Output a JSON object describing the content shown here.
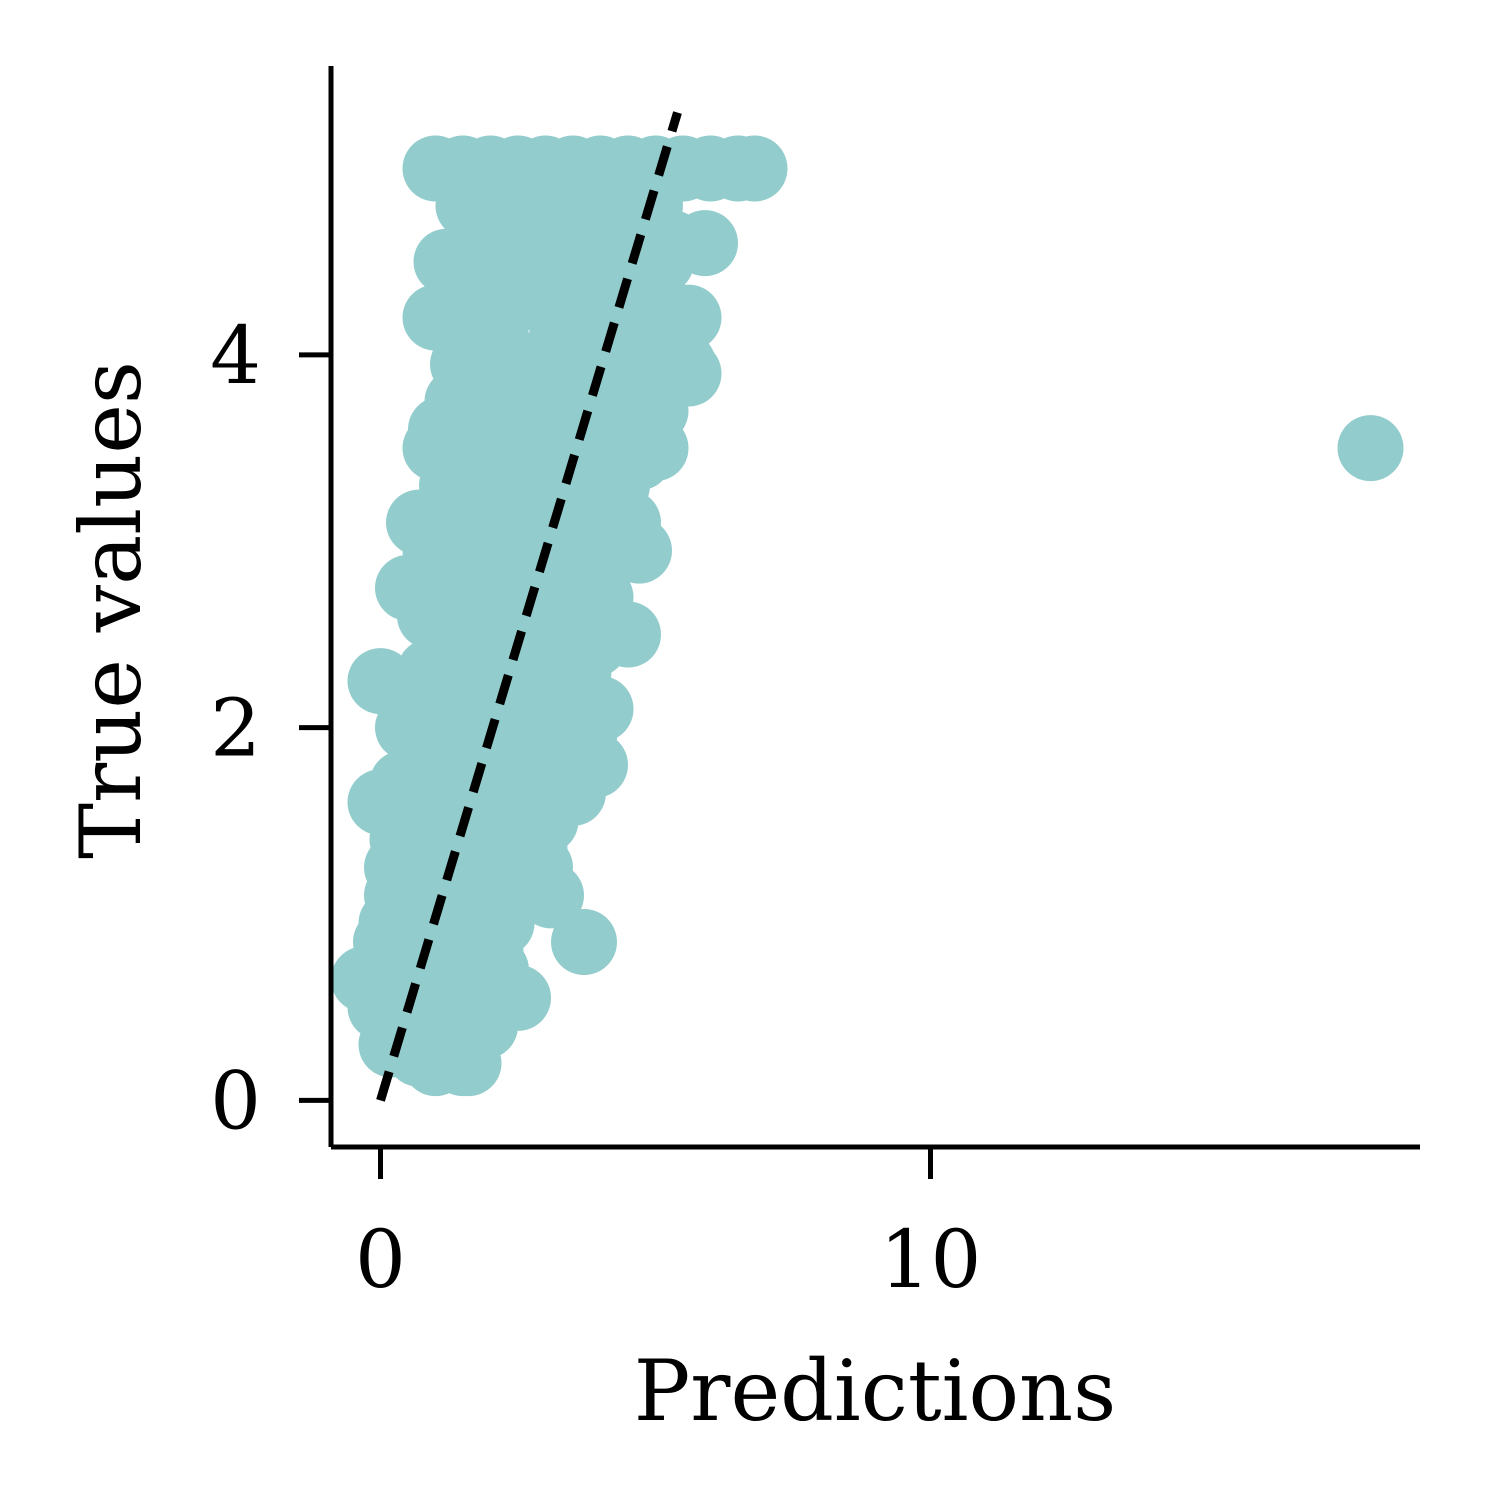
{
  "chart_data": {
    "type": "scatter",
    "title": "",
    "xlabel": "Predictions",
    "ylabel": "True values",
    "xlim": [
      -0.9,
      18.9
    ],
    "ylim": [
      -0.25,
      5.55
    ],
    "xticks": [
      0,
      10
    ],
    "yticks": [
      0,
      2,
      4
    ],
    "x_tick_labels": [
      "0",
      "10"
    ],
    "y_tick_labels": [
      "0",
      "2",
      "4"
    ],
    "grid": false,
    "legend": "none",
    "point_color": "#92cccc",
    "reference_line": {
      "style": "dashed",
      "color": "#000000",
      "x": [
        0,
        5.4
      ],
      "y": [
        0,
        5.3
      ]
    },
    "series": [
      {
        "values_xy": [
          [
            1.0,
            5.0
          ],
          [
            1.5,
            5.0
          ],
          [
            2.0,
            5.0
          ],
          [
            2.5,
            5.0
          ],
          [
            3.0,
            5.0
          ],
          [
            3.5,
            5.0
          ],
          [
            4.0,
            5.0
          ],
          [
            4.5,
            5.0
          ],
          [
            5.0,
            5.0
          ],
          [
            5.5,
            5.0
          ],
          [
            6.0,
            5.0
          ],
          [
            6.5,
            5.0
          ],
          [
            6.8,
            5.0
          ],
          [
            1.6,
            4.8
          ],
          [
            2.3,
            4.8
          ],
          [
            3.1,
            4.8
          ],
          [
            4.0,
            4.8
          ],
          [
            4.9,
            4.8
          ],
          [
            1.8,
            4.6
          ],
          [
            2.6,
            4.6
          ],
          [
            3.6,
            4.6
          ],
          [
            4.5,
            4.6
          ],
          [
            5.3,
            4.6
          ],
          [
            5.9,
            4.6
          ],
          [
            1.2,
            4.5
          ],
          [
            2.2,
            4.5
          ],
          [
            3.2,
            4.5
          ],
          [
            4.2,
            4.5
          ],
          [
            5.1,
            4.5
          ],
          [
            1.9,
            4.3
          ],
          [
            2.9,
            4.3
          ],
          [
            3.9,
            4.3
          ],
          [
            4.8,
            4.3
          ],
          [
            5.6,
            4.2
          ],
          [
            1.0,
            4.2
          ],
          [
            2.1,
            4.1
          ],
          [
            3.3,
            4.1
          ],
          [
            4.4,
            4.1
          ],
          [
            5.2,
            4.0
          ],
          [
            1.5,
            3.95
          ],
          [
            2.5,
            3.95
          ],
          [
            3.5,
            3.95
          ],
          [
            4.5,
            3.95
          ],
          [
            5.5,
            3.95
          ],
          [
            5.6,
            3.9
          ],
          [
            1.4,
            3.75
          ],
          [
            2.4,
            3.75
          ],
          [
            3.4,
            3.75
          ],
          [
            4.4,
            3.75
          ],
          [
            5.0,
            3.7
          ],
          [
            1.1,
            3.6
          ],
          [
            2.0,
            3.6
          ],
          [
            3.0,
            3.6
          ],
          [
            4.0,
            3.6
          ],
          [
            4.9,
            3.5
          ],
          [
            1.0,
            3.5
          ],
          [
            1.9,
            3.45
          ],
          [
            2.8,
            3.45
          ],
          [
            3.8,
            3.45
          ],
          [
            4.7,
            3.45
          ],
          [
            5.0,
            3.5
          ],
          [
            1.3,
            3.3
          ],
          [
            2.3,
            3.3
          ],
          [
            3.3,
            3.3
          ],
          [
            4.3,
            3.3
          ],
          [
            0.7,
            3.1
          ],
          [
            1.6,
            3.1
          ],
          [
            2.6,
            3.1
          ],
          [
            3.6,
            3.1
          ],
          [
            4.5,
            3.1
          ],
          [
            1.0,
            2.95
          ],
          [
            2.0,
            2.95
          ],
          [
            3.0,
            2.95
          ],
          [
            4.0,
            2.95
          ],
          [
            4.7,
            2.95
          ],
          [
            0.5,
            2.75
          ],
          [
            1.4,
            2.75
          ],
          [
            2.3,
            2.75
          ],
          [
            3.2,
            2.75
          ],
          [
            4.0,
            2.7
          ],
          [
            0.9,
            2.6
          ],
          [
            1.8,
            2.6
          ],
          [
            2.8,
            2.6
          ],
          [
            3.7,
            2.6
          ],
          [
            1.2,
            2.45
          ],
          [
            2.1,
            2.45
          ],
          [
            3.0,
            2.45
          ],
          [
            3.9,
            2.45
          ],
          [
            4.5,
            2.5
          ],
          [
            0.0,
            2.25
          ],
          [
            0.9,
            2.3
          ],
          [
            1.8,
            2.3
          ],
          [
            2.7,
            2.3
          ],
          [
            3.6,
            2.3
          ],
          [
            1.0,
            2.15
          ],
          [
            1.9,
            2.15
          ],
          [
            2.8,
            2.15
          ],
          [
            3.6,
            2.1
          ],
          [
            4.0,
            2.1
          ],
          [
            0.5,
            2.0
          ],
          [
            1.3,
            2.0
          ],
          [
            2.2,
            2.0
          ],
          [
            3.1,
            2.0
          ],
          [
            3.7,
            1.95
          ],
          [
            0.8,
            1.85
          ],
          [
            1.6,
            1.85
          ],
          [
            2.5,
            1.85
          ],
          [
            3.3,
            1.8
          ],
          [
            3.9,
            1.8
          ],
          [
            0.4,
            1.7
          ],
          [
            1.2,
            1.7
          ],
          [
            2.0,
            1.7
          ],
          [
            2.9,
            1.7
          ],
          [
            3.5,
            1.65
          ],
          [
            0.0,
            1.6
          ],
          [
            0.9,
            1.55
          ],
          [
            1.7,
            1.55
          ],
          [
            2.5,
            1.55
          ],
          [
            3.0,
            1.5
          ],
          [
            0.4,
            1.4
          ],
          [
            1.2,
            1.4
          ],
          [
            2.0,
            1.4
          ],
          [
            2.8,
            1.35
          ],
          [
            0.3,
            1.25
          ],
          [
            1.0,
            1.25
          ],
          [
            1.8,
            1.25
          ],
          [
            2.5,
            1.2
          ],
          [
            2.9,
            1.25
          ],
          [
            0.3,
            1.1
          ],
          [
            1.0,
            1.1
          ],
          [
            1.7,
            1.1
          ],
          [
            2.3,
            1.05
          ],
          [
            3.1,
            1.1
          ],
          [
            0.2,
            0.95
          ],
          [
            0.9,
            0.95
          ],
          [
            1.6,
            0.95
          ],
          [
            2.2,
            0.95
          ],
          [
            0.1,
            0.85
          ],
          [
            0.7,
            0.85
          ],
          [
            1.4,
            0.8
          ],
          [
            2.0,
            0.8
          ],
          [
            3.7,
            0.85
          ],
          [
            0.2,
            0.7
          ],
          [
            0.8,
            0.7
          ],
          [
            1.4,
            0.7
          ],
          [
            2.1,
            0.7
          ],
          [
            -0.3,
            0.65
          ],
          [
            0.4,
            0.6
          ],
          [
            1.0,
            0.6
          ],
          [
            1.7,
            0.6
          ],
          [
            2.3,
            0.55
          ],
          [
            0.0,
            0.5
          ],
          [
            0.6,
            0.5
          ],
          [
            1.2,
            0.5
          ],
          [
            1.8,
            0.45
          ],
          [
            2.5,
            0.55
          ],
          [
            0.3,
            0.35
          ],
          [
            0.8,
            0.35
          ],
          [
            1.3,
            0.35
          ],
          [
            1.9,
            0.4
          ],
          [
            0.2,
            0.3
          ],
          [
            0.7,
            0.25
          ],
          [
            1.2,
            0.25
          ],
          [
            1.6,
            0.2
          ],
          [
            1.0,
            0.2
          ],
          [
            1.5,
            0.2
          ],
          [
            18.0,
            3.5
          ]
        ]
      }
    ]
  }
}
